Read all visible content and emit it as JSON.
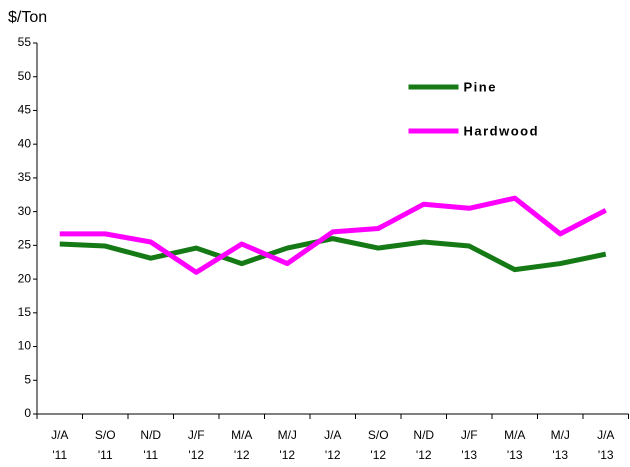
{
  "chart_data": {
    "type": "line",
    "y_label": "$/Ton",
    "categories": [
      "J/A '11",
      "S/O '11",
      "N/D '11",
      "J/F '12",
      "M/A '12",
      "M/J '12",
      "J/A '12",
      "S/O '12",
      "N/D '12",
      "J/F '13",
      "M/A '13",
      "M/J '13",
      "J/A '13"
    ],
    "series": [
      {
        "name": "Pine",
        "color": "#157a15",
        "values": [
          25.2,
          24.9,
          23.1,
          24.6,
          22.3,
          24.6,
          26.0,
          24.6,
          25.5,
          24.9,
          21.4,
          22.3,
          23.7
        ]
      },
      {
        "name": "Hardwood",
        "color": "#ff00ff",
        "values": [
          26.7,
          26.7,
          25.5,
          21.0,
          25.2,
          22.3,
          27.0,
          27.5,
          31.1,
          30.5,
          32.0,
          26.7,
          30.2
        ]
      }
    ],
    "ylim": [
      0,
      55
    ],
    "yticks": [
      0,
      5,
      10,
      15,
      20,
      25,
      30,
      35,
      40,
      45,
      50,
      55
    ],
    "grid": false,
    "legend": "upper-right"
  }
}
